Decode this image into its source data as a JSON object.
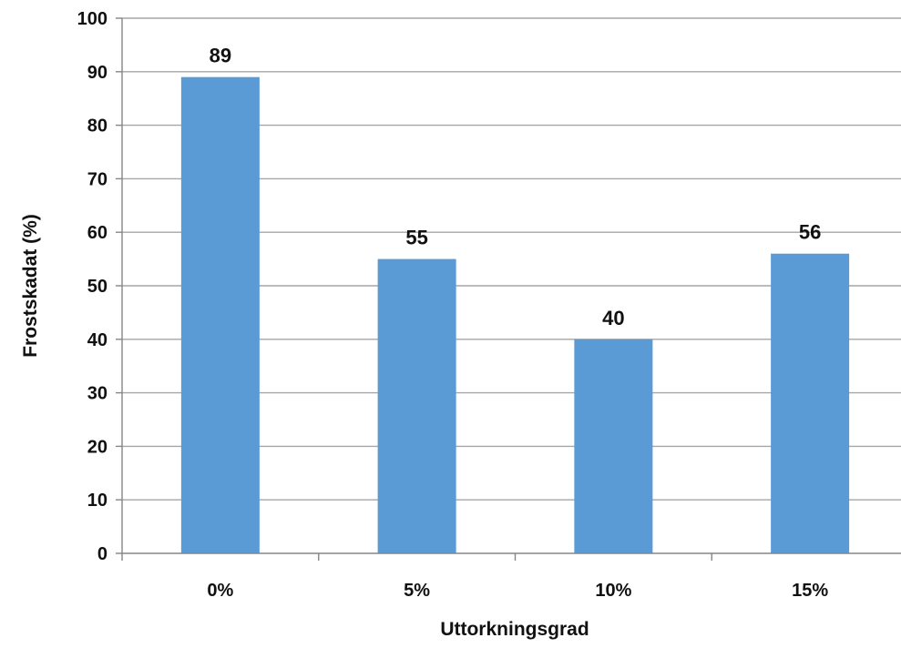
{
  "chart_data": {
    "type": "bar",
    "categories": [
      "0%",
      "5%",
      "10%",
      "15%"
    ],
    "values": [
      89,
      55,
      40,
      56
    ],
    "data_labels": [
      "89",
      "55",
      "40",
      "56"
    ],
    "xlabel": "Uttorkningsgrad",
    "ylabel": "Frostskadat (%)",
    "ylim": [
      0,
      100
    ],
    "yticks": [
      0,
      10,
      20,
      30,
      40,
      50,
      60,
      70,
      80,
      90,
      100
    ],
    "ytick_labels": [
      "0",
      "10",
      "20",
      "30",
      "40",
      "50",
      "60",
      "70",
      "80",
      "90",
      "100"
    ],
    "grid": true,
    "legend": "none",
    "colors": {
      "bar": "#5b9bd5",
      "grid": "#a6a6a6",
      "axis": "#868686",
      "text": "#111111"
    }
  }
}
